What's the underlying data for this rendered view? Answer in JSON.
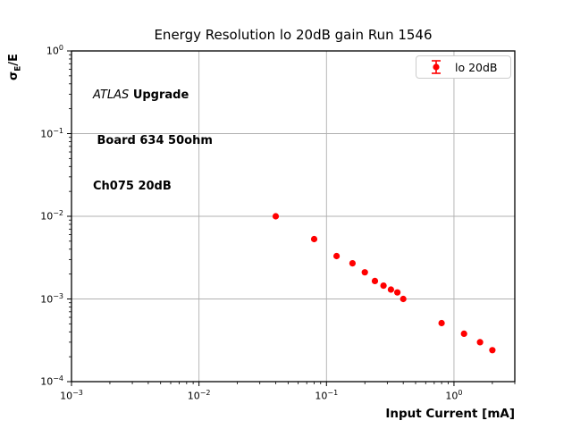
{
  "figure": {
    "title": "Energy Resolution lo 20dB gain Run 1546"
  },
  "annotation": {
    "experiment": "ATLAS",
    "program": "Upgrade",
    "line2": " Board 634 50ohm",
    "line3": "Ch075 20dB"
  },
  "legend": {
    "label": "lo 20dB",
    "marker_color": "#ff0000",
    "border_color": "#cccccc"
  },
  "axes": {
    "xlabel": "Input Current [mA]",
    "ylabel_sigma": "σ",
    "ylabel_sub": "E",
    "ylabel_rest": "/E",
    "grid_color": "#b0b0b0",
    "spine_color": "#000000"
  },
  "chart_data": {
    "type": "scatter",
    "title": "Energy Resolution lo 20dB gain Run 1546",
    "xlabel": "Input Current [mA]",
    "ylabel": "sigma_E/E",
    "xscale": "log",
    "yscale": "log",
    "xlim": [
      0.001,
      3
    ],
    "ylim": [
      0.0001,
      1
    ],
    "grid": true,
    "legend_position": "upper right",
    "x_tick_exponents": [
      -3,
      -2,
      -1,
      0
    ],
    "y_tick_exponents": [
      0,
      -1,
      -2,
      -3,
      -4
    ],
    "series": [
      {
        "name": "lo 20dB",
        "color": "#ff0000",
        "marker": "circle-with-errorbars",
        "x": [
          0.04,
          0.08,
          0.12,
          0.16,
          0.2,
          0.24,
          0.28,
          0.32,
          0.36,
          0.4,
          0.8,
          1.2,
          1.6,
          2.0
        ],
        "y": [
          0.01,
          0.0053,
          0.0033,
          0.0027,
          0.0021,
          0.00165,
          0.00145,
          0.0013,
          0.0012,
          0.001,
          0.00051,
          0.00038,
          0.0003,
          0.00024
        ]
      }
    ]
  }
}
